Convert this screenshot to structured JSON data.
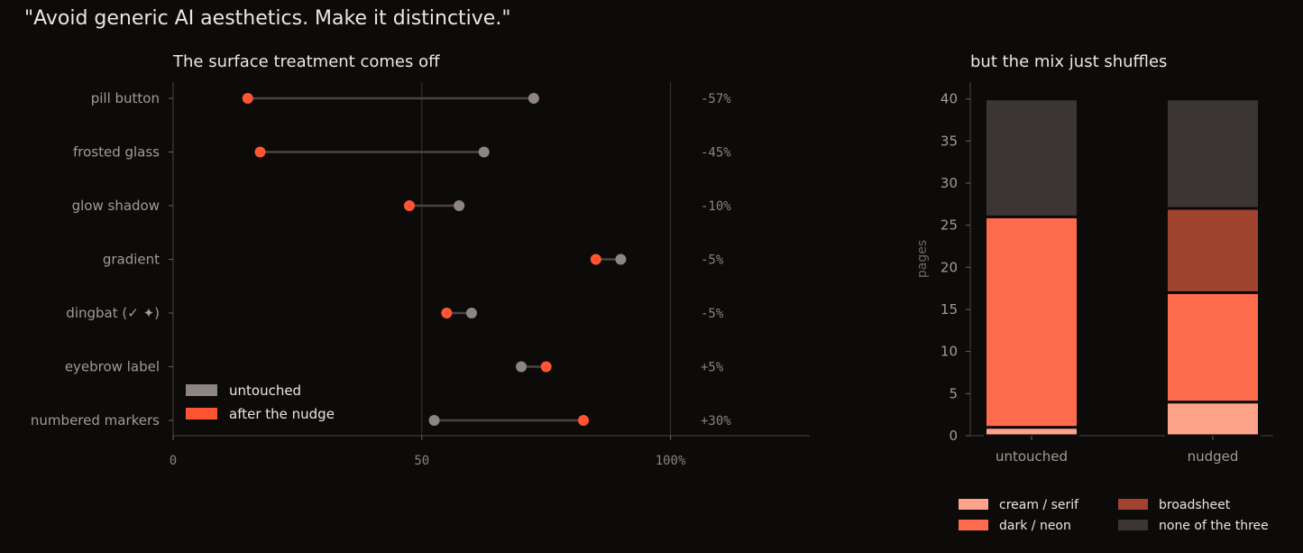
{
  "suptitle": "\"Avoid generic AI aesthetics. Make it distinctive.\"",
  "colors": {
    "background": "#0d0a0a",
    "untouched": "#8c8584",
    "after": "#ff5533",
    "cream_serif": "#ffa28a",
    "dark_neon": "#ff6b4d",
    "broadsheet": "#a0432f",
    "none": "#3b3533"
  },
  "chart_data": [
    {
      "type": "dumbbell",
      "title": "The surface treatment comes off",
      "xlim": [
        0,
        128
      ],
      "xticks": [
        {
          "value": 0,
          "label": "0"
        },
        {
          "value": 50,
          "label": "50"
        },
        {
          "value": 100,
          "label": "100%"
        }
      ],
      "vlines": [
        50,
        100
      ],
      "categories": [
        "pill button",
        "frosted glass",
        "glow shadow",
        "gradient",
        "dingbat (✓ ✦)",
        "eyebrow label",
        "numbered markers"
      ],
      "series": [
        {
          "name": "untouched",
          "values": [
            72.5,
            62.5,
            57.5,
            90,
            60,
            70,
            52.5
          ]
        },
        {
          "name": "after the nudge",
          "values": [
            15,
            17.5,
            47.5,
            85,
            55,
            75,
            82.5
          ]
        }
      ],
      "annotations": [
        "-57%",
        "-45%",
        "-10%",
        "-5%",
        "-5%",
        "+5%",
        "+30%"
      ],
      "legend_position": "lower-left"
    },
    {
      "type": "stacked-bar",
      "title": "but the mix just shuffles",
      "ylabel": "pages",
      "ylim": [
        0,
        42
      ],
      "yticks": [
        0,
        5,
        10,
        15,
        20,
        25,
        30,
        35,
        40
      ],
      "categories": [
        "untouched",
        "nudged"
      ],
      "series": [
        {
          "name": "cream / serif",
          "values": [
            1,
            4
          ]
        },
        {
          "name": "dark / neon",
          "values": [
            25,
            13
          ]
        },
        {
          "name": "broadsheet",
          "values": [
            0,
            10
          ]
        },
        {
          "name": "none of the three",
          "values": [
            14,
            13
          ]
        }
      ],
      "legend_position": "bottom"
    }
  ]
}
